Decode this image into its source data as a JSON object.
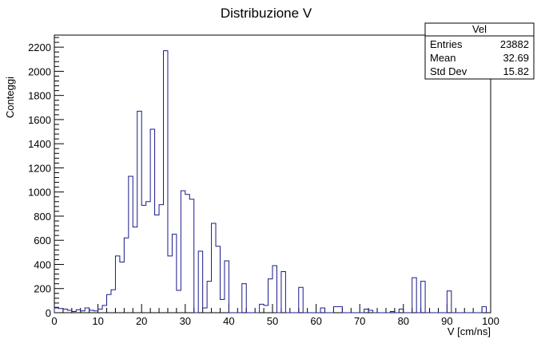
{
  "chart_data": {
    "type": "bar",
    "title": "Distribuzione V",
    "xlabel": "V [cm/ns]",
    "ylabel": "Conteggi",
    "xlim": [
      0,
      100
    ],
    "ylim": [
      0,
      2300
    ],
    "bin_width": 1,
    "x_ticks": [
      "0",
      "10",
      "20",
      "30",
      "40",
      "50",
      "60",
      "70",
      "80",
      "90",
      "100"
    ],
    "y_ticks": [
      "0",
      "200",
      "400",
      "600",
      "800",
      "1000",
      "1200",
      "1400",
      "1600",
      "1800",
      "2000",
      "2200"
    ],
    "line_color": "#1a1a8c",
    "grid": false,
    "legend_position": "top-right",
    "values": [
      45,
      35,
      30,
      20,
      10,
      25,
      15,
      40,
      20,
      15,
      30,
      60,
      150,
      190,
      470,
      420,
      620,
      1130,
      710,
      1670,
      890,
      920,
      1520,
      810,
      895,
      2170,
      470,
      650,
      185,
      1010,
      980,
      940,
      0,
      510,
      40,
      260,
      740,
      550,
      110,
      430,
      0,
      0,
      0,
      240,
      0,
      0,
      0,
      70,
      60,
      280,
      390,
      0,
      340,
      0,
      0,
      0,
      210,
      0,
      0,
      0,
      0,
      40,
      0,
      0,
      50,
      50,
      0,
      0,
      0,
      0,
      0,
      30,
      20,
      0,
      0,
      0,
      0,
      10,
      0,
      30,
      0,
      0,
      290,
      0,
      260,
      0,
      0,
      0,
      0,
      0,
      180,
      0,
      0,
      0,
      0,
      0,
      0,
      0,
      50
    ],
    "stats_box": {
      "title": "Vel",
      "rows": [
        {
          "label": "Entries",
          "value": "23882"
        },
        {
          "label": "Mean",
          "value": "32.69"
        },
        {
          "label": "Std Dev",
          "value": "15.82"
        }
      ]
    }
  }
}
